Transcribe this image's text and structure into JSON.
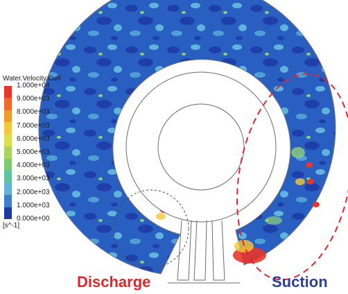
{
  "legend": {
    "title": "Water.Velocity.Curl",
    "unit": "[s^-1]",
    "ticks": [
      "1.000e+04",
      "9.000e+03",
      "8.000e+03",
      "7.000e+03",
      "6.000e+03",
      "5.000e+03",
      "4.000e+03",
      "3.000e+03",
      "2.000e+03",
      "1.000e+03",
      "0.000e+00"
    ],
    "colors": [
      "#e8352b",
      "#ee6a28",
      "#f39a2c",
      "#f3c83a",
      "#d9e04a",
      "#a9d65a",
      "#7dcb6e",
      "#5fc2a0",
      "#63b3d6",
      "#3f7ed0",
      "#1d3a9e"
    ]
  },
  "labels": {
    "discharge": "Discharge",
    "suction": "Suction",
    "discharge_color": "#e0262a",
    "suction_color": "#2d3f95"
  },
  "field": {
    "base_color": "#2a5fc2",
    "dark_color": "#1f3fa8",
    "light_color": "#5fb3dc",
    "green_color": "#8fcf7a",
    "hot_color": "#e8352b"
  }
}
